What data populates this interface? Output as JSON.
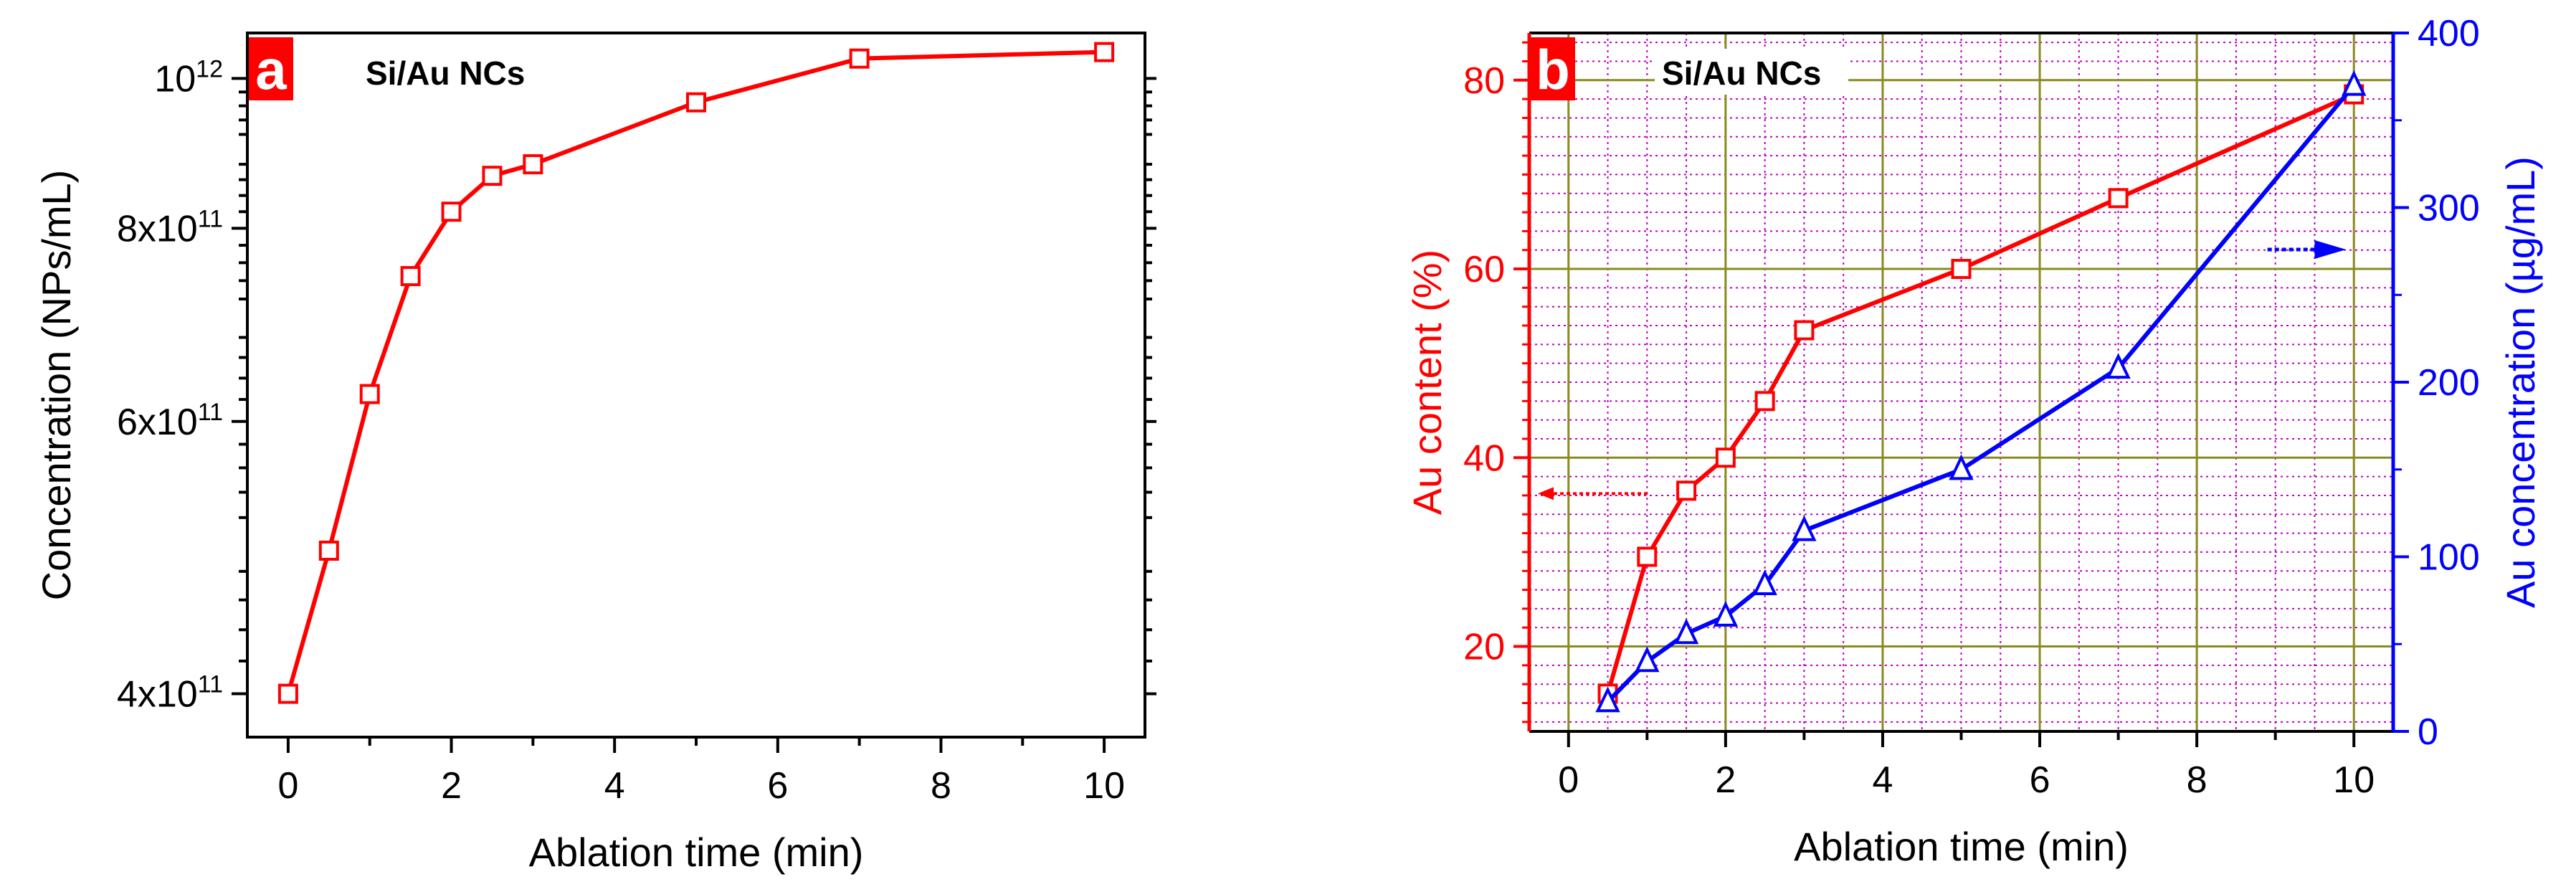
{
  "chart_data": [
    {
      "type": "line",
      "panel_label": "a",
      "annotation": "Si/Au NCs",
      "xlabel": "Ablation time (min)",
      "ylabel": "Concentration (NPs/mL)",
      "x_ticks": [
        "0",
        "2",
        "4",
        "6",
        "8",
        "10"
      ],
      "xlim": [
        -0.5,
        10.5
      ],
      "yscale": "log",
      "ylim": [
        375000000000.0,
        1070000000000.0
      ],
      "y_ticks": [
        {
          "value": 400000000000.0,
          "base": "4x10",
          "exp": "11"
        },
        {
          "value": 600000000000.0,
          "base": "6x10",
          "exp": "11"
        },
        {
          "value": 800000000000.0,
          "base": "8x10",
          "exp": "11"
        },
        {
          "value": 1000000000000.0,
          "base": "10",
          "exp": "12"
        }
      ],
      "series": [
        {
          "name": "Concentration",
          "color": "#ff0000",
          "marker": "square",
          "x": [
            0,
            0.5,
            1,
            1.5,
            2,
            2.5,
            3,
            5,
            7,
            10
          ],
          "y": [
            400000000000.0,
            495000000000.0,
            625000000000.0,
            745000000000.0,
            820000000000.0,
            865000000000.0,
            880000000000.0,
            965000000000.0,
            1030000000000.0,
            1040000000000.0
          ]
        }
      ]
    },
    {
      "type": "line",
      "panel_label": "b",
      "annotation": "Si/Au NCs",
      "xlabel": "Ablation time (min)",
      "ylabel_left": "Au content (%)",
      "ylabel_right": "Au concentration (µg/mL)",
      "x_ticks": [
        "0",
        "2",
        "4",
        "6",
        "8",
        "10"
      ],
      "xlim": [
        -0.5,
        10.5
      ],
      "ylim_left": [
        11,
        85
      ],
      "ylim_right": [
        0,
        400
      ],
      "y_ticks_left": [
        "20",
        "40",
        "60",
        "80"
      ],
      "y_ticks_right": [
        "0",
        "100",
        "200",
        "300",
        "400"
      ],
      "grid": true,
      "series": [
        {
          "name": "Au content",
          "axis": "left",
          "color": "#ff0000",
          "marker": "square",
          "x": [
            0.5,
            1,
            1.5,
            2,
            2.5,
            3,
            5,
            7,
            10
          ],
          "y": [
            15,
            29.5,
            36.5,
            40,
            46,
            53.5,
            60,
            67.5,
            78.5
          ]
        },
        {
          "name": "Au concentration",
          "axis": "right",
          "color": "#0000ff",
          "marker": "triangle",
          "x": [
            0.5,
            1,
            1.5,
            2,
            2.5,
            3,
            5,
            7,
            10
          ],
          "y": [
            17,
            40,
            56,
            66,
            84,
            115,
            150,
            208,
            370
          ]
        }
      ]
    }
  ]
}
